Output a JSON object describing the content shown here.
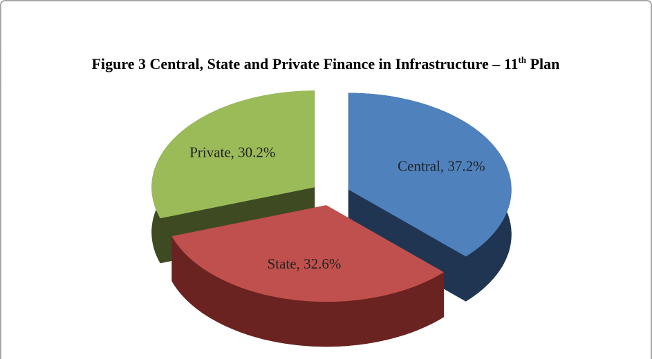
{
  "chart_data": {
    "type": "pie3d",
    "title": [
      "Figure 3 Central, State and Private Finance in Infrastructure – 11",
      "th",
      " Plan"
    ],
    "categories": [
      "Central",
      "State",
      "Private"
    ],
    "values": [
      37.2,
      32.6,
      30.2
    ],
    "value_labels": [
      "Central, 37.2%",
      "State, 32.6%",
      "Private, 30.2%"
    ],
    "colors": [
      "#4f81bd",
      "#c0504d",
      "#9bbb59"
    ],
    "side_colors": [
      "#1f3552",
      "#6a2321",
      "#3e4b22"
    ],
    "exploded": true
  }
}
